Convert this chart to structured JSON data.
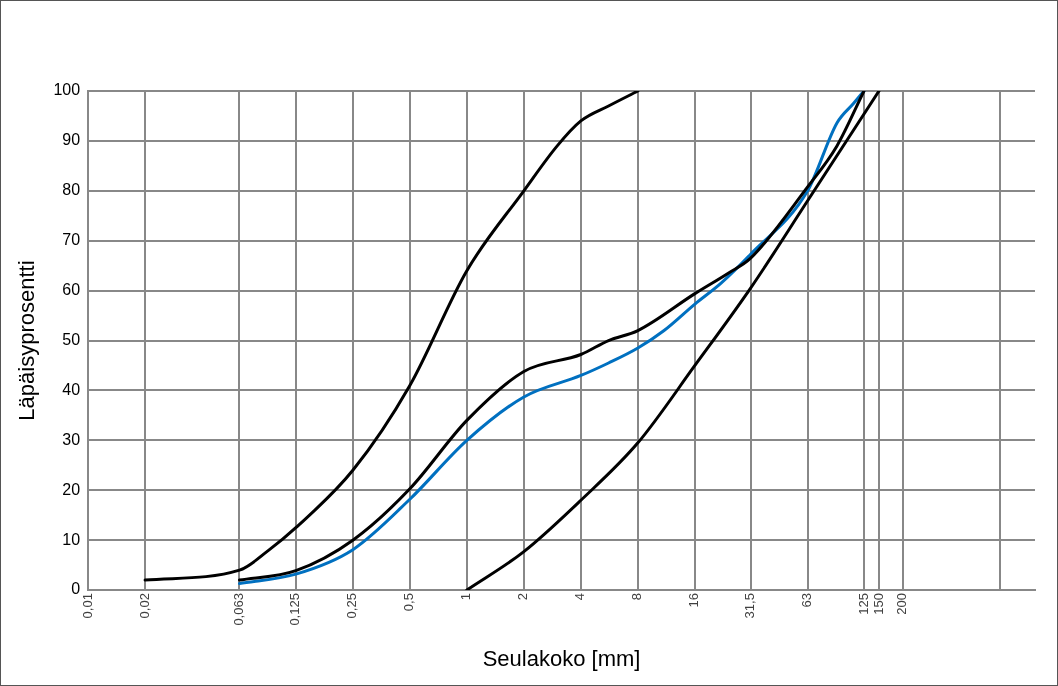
{
  "chart_data": {
    "type": "line",
    "xlabel": "Seulakoko [mm]",
    "ylabel": "Läpäisyprosentti",
    "log": "x",
    "xlim": [
      0.01,
      1000
    ],
    "xticks": [
      {
        "value": 0.01,
        "label": "0,01"
      },
      {
        "value": 0.02,
        "label": "0,02"
      },
      {
        "value": 0.063,
        "label": "0,063"
      },
      {
        "value": 0.125,
        "label": "0,125"
      },
      {
        "value": 0.25,
        "label": "0,25"
      },
      {
        "value": 0.5,
        "label": "0,5"
      },
      1,
      2,
      4,
      8,
      16,
      {
        "value": 31.5,
        "label": "31,5"
      },
      63,
      125,
      150,
      200,
      {
        "value": 650,
        "label": null
      }
    ],
    "ylim": [
      0,
      100
    ],
    "yticks": [
      0,
      10,
      20,
      30,
      40,
      50,
      60,
      70,
      80,
      90,
      100
    ],
    "grid": true,
    "legend": false,
    "marker": "none",
    "line_style": "solid",
    "series": [
      {
        "color": "#000000",
        "x": [
          0.02,
          0.063,
          0.09,
          0.125,
          0.25,
          0.5,
          1,
          2,
          3,
          4,
          5.6,
          8
        ],
        "values": [
          2,
          4,
          8,
          12.5,
          24,
          41,
          64,
          80,
          89,
          94,
          97,
          100
        ]
      },
      {
        "color": "#000000",
        "x": [
          0.063,
          0.125,
          0.25,
          0.5,
          1,
          2,
          4,
          5.6,
          8,
          16,
          24,
          31.5,
          63,
          90,
          125
        ],
        "values": [
          2,
          3.9,
          10,
          20.3,
          34,
          43.8,
          47.2,
          50,
          52,
          59.4,
          63.5,
          66.5,
          80.8,
          89,
          100
        ]
      },
      {
        "color": "#0070c0",
        "x": [
          0.063,
          0.125,
          0.25,
          0.5,
          1,
          2,
          4,
          5.6,
          8,
          11,
          16,
          22,
          31.5,
          63,
          90,
          110,
          125
        ],
        "values": [
          1.3,
          3.2,
          8.1,
          18.2,
          30,
          38.7,
          43,
          45.5,
          48.5,
          52,
          57.3,
          61.5,
          67.3,
          80,
          93.6,
          97.5,
          100
        ]
      },
      {
        "color": "#000000",
        "x": [
          1,
          2,
          4,
          8,
          16,
          31.5,
          63,
          150
        ],
        "values": [
          0,
          7.7,
          18,
          29.5,
          45,
          60.5,
          78,
          100
        ]
      }
    ]
  }
}
